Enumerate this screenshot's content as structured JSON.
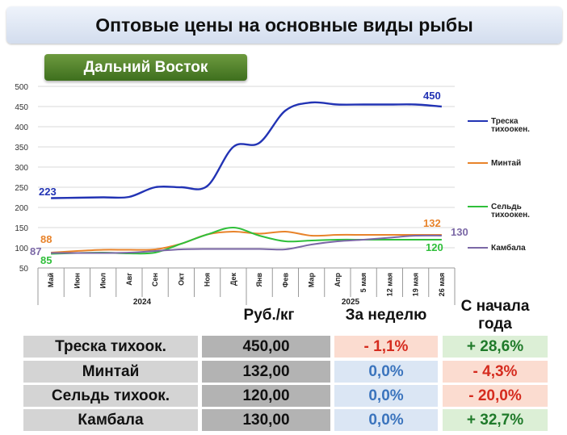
{
  "title": "Оптовые цены на основные виды рыбы",
  "region": "Дальний Восток",
  "chart_data": {
    "type": "line",
    "categories": [
      "Май",
      "Июн",
      "Июл",
      "Авг",
      "Сен",
      "Окт",
      "Ноя",
      "Дек",
      "Янв",
      "Фев",
      "Мар",
      "Апр",
      "5 мая",
      "12 мая",
      "19 мая",
      "26 мая"
    ],
    "year_labels": [
      "2024",
      "2025"
    ],
    "ylim": [
      50,
      500
    ],
    "yticks": [
      50,
      100,
      150,
      200,
      250,
      300,
      350,
      400,
      450,
      500
    ],
    "grid": true,
    "legend_position": "right",
    "series": [
      {
        "name": "Треска тихоокен.",
        "color": "#2233b4",
        "values": [
          223,
          224,
          225,
          226,
          250,
          250,
          253,
          350,
          360,
          440,
          460,
          455,
          455,
          455,
          455,
          450
        ],
        "start_label": "223",
        "end_label": "450"
      },
      {
        "name": "Минтай",
        "color": "#e8832a",
        "values": [
          88,
          92,
          95,
          95,
          96,
          110,
          133,
          140,
          135,
          140,
          130,
          132,
          132,
          132,
          132,
          132
        ],
        "start_label": "88",
        "end_label": "132"
      },
      {
        "name": "Сельдь тихоокен.",
        "color": "#2fbf3a",
        "values": [
          85,
          87,
          88,
          86,
          88,
          110,
          133,
          150,
          130,
          116,
          118,
          120,
          120,
          120,
          120,
          120
        ],
        "start_label": "85",
        "end_label": "120"
      },
      {
        "name": "Камбала",
        "color": "#7b68a6",
        "values": [
          87,
          87,
          87,
          88,
          92,
          96,
          97,
          97,
          97,
          96,
          108,
          116,
          120,
          125,
          130,
          130
        ],
        "start_label": "87",
        "end_label": "130"
      }
    ]
  },
  "table": {
    "headers": {
      "price": "Руб./кг",
      "week": "За неделю",
      "start": "С начала года"
    },
    "rows": [
      {
        "name": "Треска тихоок.",
        "price": "450,00",
        "week": "- 1,1%",
        "week_sign": "neg",
        "start": "+ 28,6%",
        "start_sign": "pos"
      },
      {
        "name": "Минтай",
        "price": "132,00",
        "week": "0,0%",
        "week_sign": "zero",
        "start": "- 4,3%",
        "start_sign": "neg"
      },
      {
        "name": "Сельдь тихоок.",
        "price": "120,00",
        "week": "0,0%",
        "week_sign": "zero",
        "start": "- 20,0%",
        "start_sign": "neg"
      },
      {
        "name": "Камбала",
        "price": "130,00",
        "week": "0,0%",
        "week_sign": "zero",
        "start": "+ 32,7%",
        "start_sign": "pos"
      }
    ]
  }
}
